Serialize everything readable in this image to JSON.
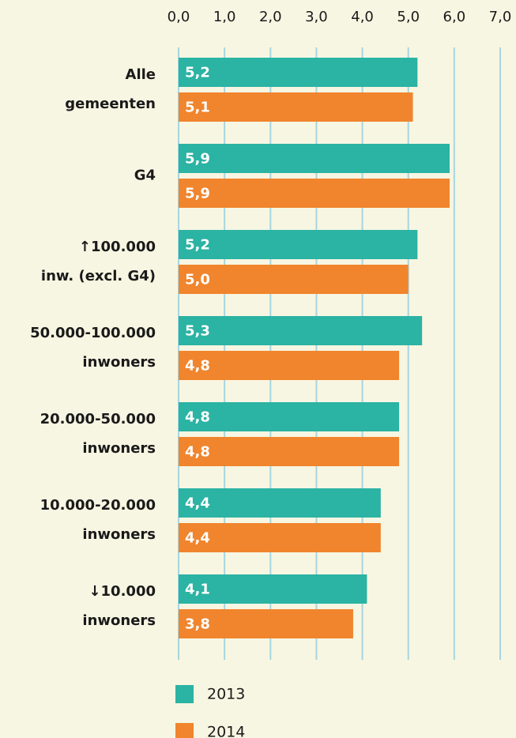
{
  "chart_data": {
    "type": "bar",
    "orientation": "horizontal",
    "categories": [
      [
        "Alle",
        "gemeenten"
      ],
      [
        "G4"
      ],
      [
        "↑100.000",
        "inw. (excl. G4)"
      ],
      [
        "50.000-100.000",
        "inwoners"
      ],
      [
        "20.000-50.000",
        "inwoners"
      ],
      [
        "10.000-20.000",
        "inwoners"
      ],
      [
        "↓10.000",
        "inwoners"
      ]
    ],
    "series": [
      {
        "name": "2013",
        "color": "#2bb3a3",
        "values": [
          5.2,
          5.9,
          5.2,
          5.3,
          4.8,
          4.4,
          4.1
        ],
        "value_labels": [
          "5,2",
          "5,9",
          "5,2",
          "5,3",
          "4,8",
          "4,4",
          "4,1"
        ]
      },
      {
        "name": "2014",
        "color": "#f0852d",
        "values": [
          5.1,
          5.9,
          5.0,
          4.8,
          4.8,
          4.4,
          3.8
        ],
        "value_labels": [
          "5,1",
          "5,9",
          "5,0",
          "4,8",
          "4,8",
          "4,4",
          "3,8"
        ]
      }
    ],
    "xlim": [
      0,
      7
    ],
    "xticks": [
      {
        "value": 0,
        "label": "0,0"
      },
      {
        "value": 1,
        "label": "1,0"
      },
      {
        "value": 2,
        "label": "2,0"
      },
      {
        "value": 3,
        "label": "3,0"
      },
      {
        "value": 4,
        "label": "4,0"
      },
      {
        "value": 5,
        "label": "5,0"
      },
      {
        "value": 6,
        "label": "6,0"
      },
      {
        "value": 7,
        "label": "7,0"
      }
    ],
    "grid": true,
    "legend": "bottom"
  }
}
